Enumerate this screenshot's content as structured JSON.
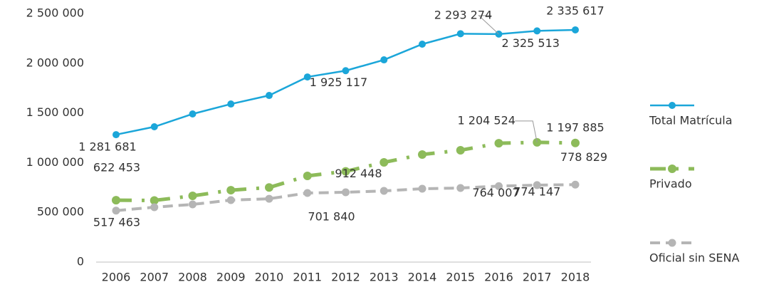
{
  "chart_data": {
    "type": "line",
    "categories": [
      "2006",
      "2007",
      "2008",
      "2009",
      "2010",
      "2011",
      "2012",
      "2013",
      "2014",
      "2015",
      "2016",
      "2017",
      "2018"
    ],
    "ylim": [
      0,
      2500000
    ],
    "yticks": [
      0,
      {
        "value": 500000,
        "label": "500 000"
      },
      {
        "value": 1000000,
        "label": "1 000 000"
      },
      {
        "value": 1500000,
        "label": "1 500 000"
      },
      {
        "value": 2000000,
        "label": "2 000 000"
      },
      {
        "value": 2500000,
        "label": "2 500 000"
      }
    ],
    "grid": false,
    "legend": "right",
    "series": [
      {
        "name": "Total Matrícula",
        "color": "#1ba6d9",
        "dash": "solid",
        "values": [
          1281681,
          1361000,
          1490000,
          1590000,
          1676000,
          1862000,
          1925117,
          2034000,
          2192000,
          2297000,
          2293274,
          2325513,
          2335617
        ],
        "value_labels": [
          "1 281 681",
          null,
          null,
          null,
          null,
          null,
          "1 925 117",
          null,
          null,
          null,
          "2 293 274",
          "2 325 513",
          "2 335 617"
        ]
      },
      {
        "name": "Privado",
        "color": "#8dbb5a",
        "dash": "dash-dot",
        "values": [
          622453,
          620000,
          666000,
          723000,
          750000,
          867000,
          912448,
          1003000,
          1082000,
          1125000,
          1195000,
          1204524,
          1197885
        ],
        "value_labels": [
          "622 453",
          null,
          null,
          null,
          null,
          null,
          "912 448",
          null,
          null,
          null,
          null,
          "1 204 524",
          "1 197 885"
        ]
      },
      {
        "name": "Oficial sin SENA",
        "color": "#b5b5b5",
        "dash": "dash",
        "values": [
          517463,
          552000,
          580000,
          623000,
          637000,
          695000,
          701840,
          716000,
          738000,
          745000,
          764007,
          774147,
          778829
        ],
        "value_labels": [
          "517 463",
          null,
          null,
          null,
          null,
          null,
          "701 840",
          null,
          null,
          null,
          "764 007",
          "774 147",
          "778 829"
        ]
      }
    ]
  }
}
